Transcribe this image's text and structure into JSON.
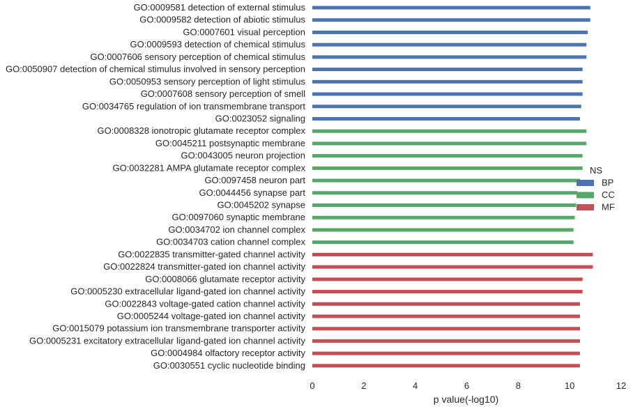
{
  "chart_data": {
    "type": "bar",
    "orientation": "horizontal",
    "xlabel": "p value(-log10)",
    "ylabel": "",
    "xlim": [
      0,
      12
    ],
    "xticks": [
      "0",
      "2",
      "4",
      "6",
      "8",
      "10",
      "12"
    ],
    "grid": false,
    "legend": {
      "title": "NS",
      "position": "right",
      "entries": [
        {
          "name": "BP",
          "color": "#4c72b0"
        },
        {
          "name": "CC",
          "color": "#55a868"
        },
        {
          "name": "MF",
          "color": "#c44e52"
        }
      ]
    },
    "categories": [
      {
        "label": "GO:0009581 detection of external stimulus",
        "value": 10.8,
        "group": "BP"
      },
      {
        "label": "GO:0009582 detection of abiotic stimulus",
        "value": 10.8,
        "group": "BP"
      },
      {
        "label": "GO:0007601 visual perception",
        "value": 10.7,
        "group": "BP"
      },
      {
        "label": "GO:0009593 detection of chemical stimulus",
        "value": 10.65,
        "group": "BP"
      },
      {
        "label": "GO:0007606 sensory perception of chemical stimulus",
        "value": 10.65,
        "group": "BP"
      },
      {
        "label": "GO:0050907 detection of chemical stimulus involved in sensory perception",
        "value": 10.5,
        "group": "BP"
      },
      {
        "label": "GO:0050953 sensory perception of light stimulus",
        "value": 10.5,
        "group": "BP"
      },
      {
        "label": "GO:0007608 sensory perception of smell",
        "value": 10.5,
        "group": "BP"
      },
      {
        "label": "GO:0034765 regulation of ion transmembrane transport",
        "value": 10.45,
        "group": "BP"
      },
      {
        "label": "GO:0023052 signaling",
        "value": 10.4,
        "group": "BP"
      },
      {
        "label": "GO:0008328 ionotropic glutamate receptor complex",
        "value": 10.65,
        "group": "CC"
      },
      {
        "label": "GO:0045211 postsynaptic membrane",
        "value": 10.65,
        "group": "CC"
      },
      {
        "label": "GO:0043005 neuron projection",
        "value": 10.5,
        "group": "CC"
      },
      {
        "label": "GO:0032281 AMPA glutamate receptor complex",
        "value": 10.5,
        "group": "CC"
      },
      {
        "label": "GO:0097458 neuron part",
        "value": 10.4,
        "group": "CC"
      },
      {
        "label": "GO:0044456 synapse part",
        "value": 10.3,
        "group": "CC"
      },
      {
        "label": "GO:0045202 synapse",
        "value": 10.25,
        "group": "CC"
      },
      {
        "label": "GO:0097060 synaptic membrane",
        "value": 10.2,
        "group": "CC"
      },
      {
        "label": "GO:0034702 ion channel complex",
        "value": 10.15,
        "group": "CC"
      },
      {
        "label": "GO:0034703 cation channel complex",
        "value": 10.15,
        "group": "CC"
      },
      {
        "label": "GO:0022835 transmitter-gated channel activity",
        "value": 10.9,
        "group": "MF"
      },
      {
        "label": "GO:0022824 transmitter-gated ion channel activity",
        "value": 10.9,
        "group": "MF"
      },
      {
        "label": "GO:0008066 glutamate receptor activity",
        "value": 10.5,
        "group": "MF"
      },
      {
        "label": "GO:0005230 extracellular ligand-gated ion channel activity",
        "value": 10.5,
        "group": "MF"
      },
      {
        "label": "GO:0022843 voltage-gated cation channel activity",
        "value": 10.4,
        "group": "MF"
      },
      {
        "label": "GO:0005244 voltage-gated ion channel activity",
        "value": 10.4,
        "group": "MF"
      },
      {
        "label": "GO:0015079 potassium ion transmembrane transporter activity",
        "value": 10.4,
        "group": "MF"
      },
      {
        "label": "GO:0005231 excitatory extracellular ligand-gated ion channel activity",
        "value": 10.4,
        "group": "MF"
      },
      {
        "label": "GO:0004984 olfactory receptor activity",
        "value": 10.4,
        "group": "MF"
      },
      {
        "label": "GO:0030551 cyclic nucleotide binding",
        "value": 10.4,
        "group": "MF"
      }
    ]
  }
}
